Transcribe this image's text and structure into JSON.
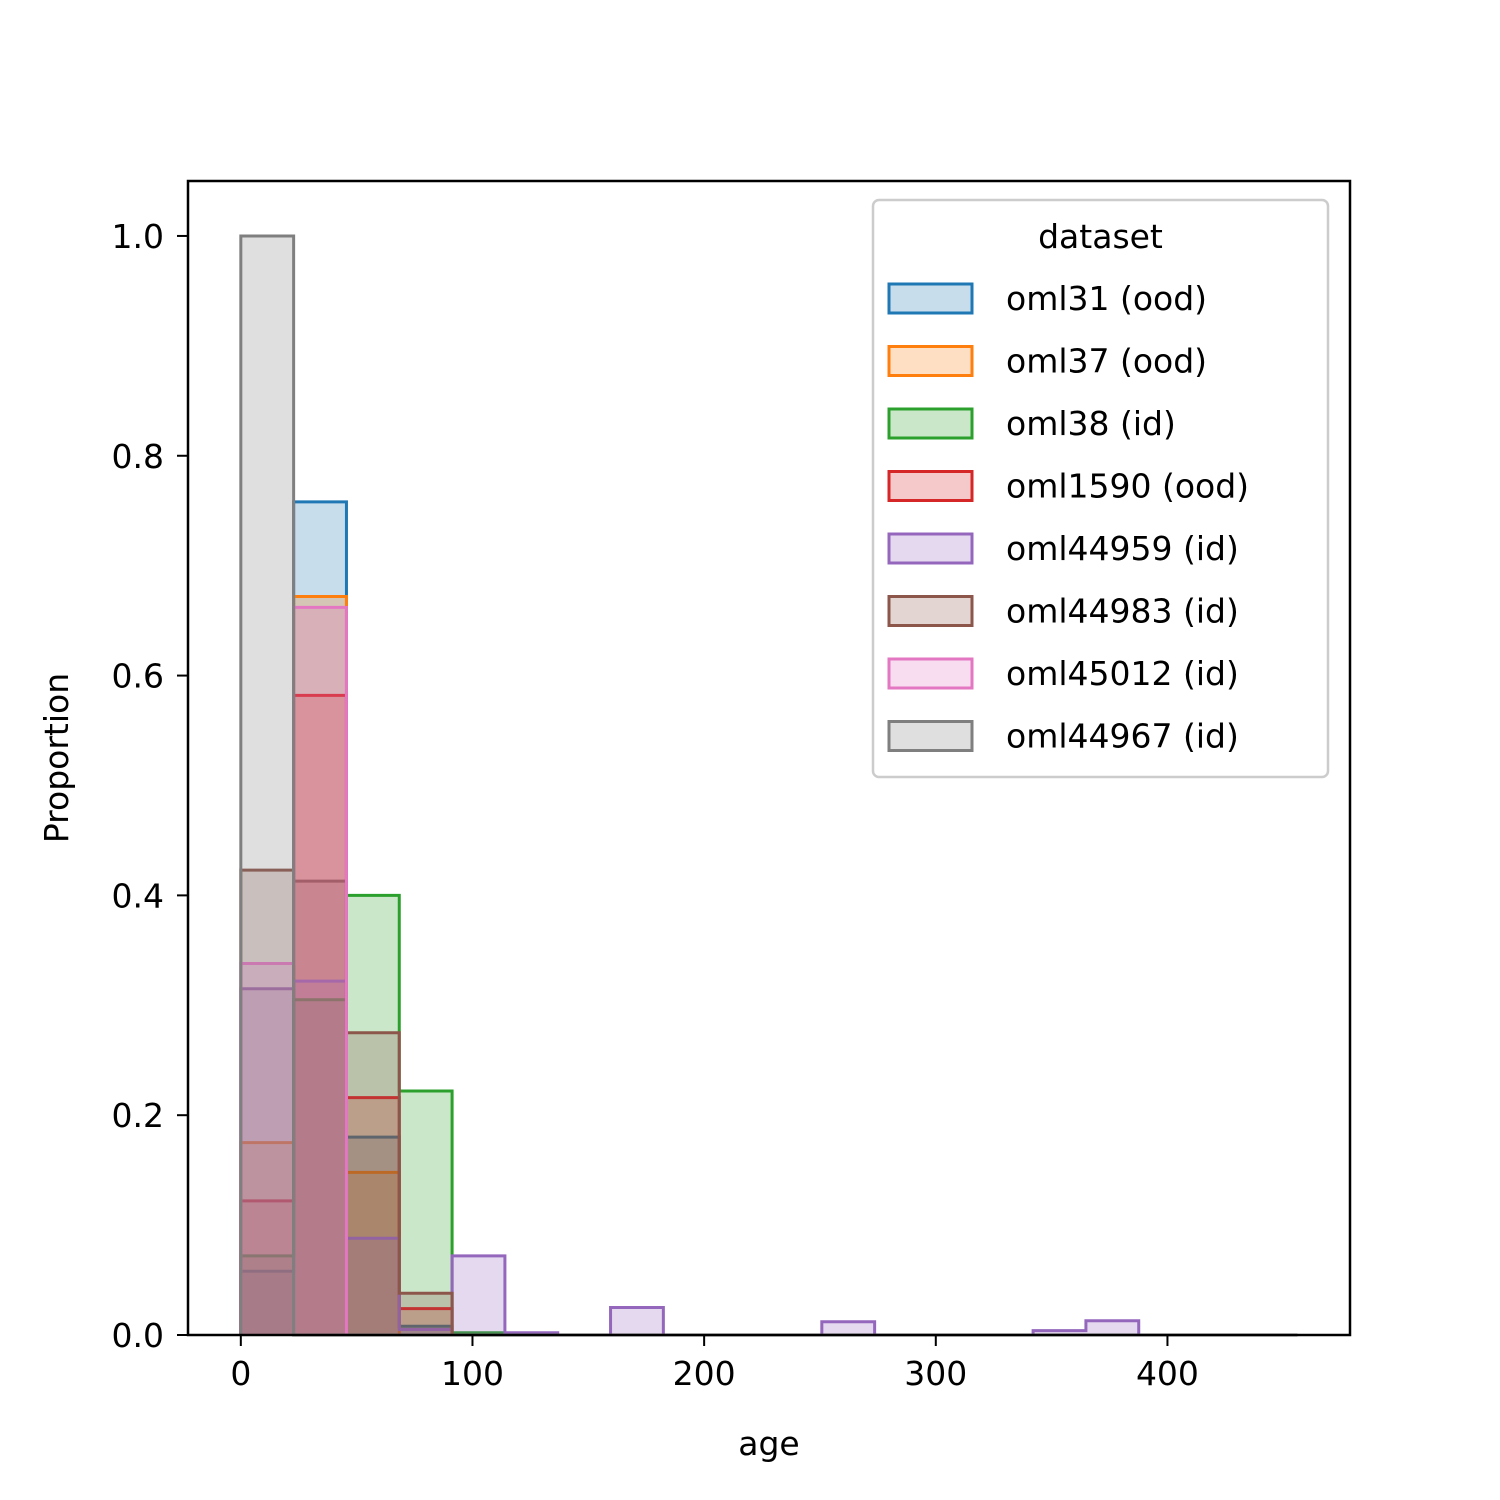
{
  "chart_data": {
    "type": "histogram",
    "xlabel": "age",
    "ylabel": "Proportion",
    "xlim": [
      -22.8,
      478.8
    ],
    "ylim": [
      0,
      1.05
    ],
    "xticks": [
      0,
      100,
      200,
      300,
      400
    ],
    "yticks": [
      "0.0",
      "0.2",
      "0.4",
      "0.6",
      "0.8",
      "1.0"
    ],
    "bin_edges": [
      0,
      22.8,
      45.6,
      68.4,
      91.2,
      114,
      136.8,
      159.6,
      182.4,
      205.2,
      228,
      250.8,
      273.6,
      296.4,
      319.2,
      342,
      364.8,
      387.6,
      410.4,
      433.2,
      456
    ],
    "legend": {
      "title": "dataset",
      "position": "upper right"
    },
    "series": [
      {
        "name": "oml31 (ood)",
        "color": "#1f77b4",
        "values": [
          0.058,
          0.758,
          0.18,
          0.008,
          0,
          0,
          0,
          0,
          0,
          0,
          0,
          0,
          0,
          0,
          0,
          0,
          0,
          0,
          0,
          0
        ]
      },
      {
        "name": "oml37 (ood)",
        "color": "#ff7f0e",
        "values": [
          0.175,
          0.672,
          0.148,
          0,
          0,
          0,
          0,
          0,
          0,
          0,
          0,
          0,
          0,
          0,
          0,
          0,
          0,
          0,
          0,
          0
        ]
      },
      {
        "name": "oml38 (id)",
        "color": "#2ca02c",
        "values": [
          0.072,
          0.305,
          0.4,
          0.222,
          0.002,
          0,
          0,
          0,
          0,
          0,
          0,
          0,
          0,
          0,
          0,
          0,
          0,
          0,
          0,
          0
        ]
      },
      {
        "name": "oml1590 (ood)",
        "color": "#d62728",
        "values": [
          0.122,
          0.582,
          0.216,
          0.024,
          0,
          0,
          0,
          0,
          0,
          0,
          0,
          0,
          0,
          0,
          0,
          0,
          0,
          0,
          0,
          0
        ]
      },
      {
        "name": "oml44959 (id)",
        "color": "#9467bd",
        "values": [
          0.315,
          0.322,
          0.088,
          0.005,
          0.072,
          0.002,
          0,
          0.025,
          0,
          0,
          0,
          0.012,
          0,
          0,
          0,
          0.004,
          0.013,
          0,
          0,
          0
        ]
      },
      {
        "name": "oml44983 (id)",
        "color": "#8c564b",
        "values": [
          0.423,
          0.413,
          0.275,
          0.038,
          0,
          0,
          0,
          0,
          0,
          0,
          0,
          0,
          0,
          0,
          0,
          0,
          0,
          0,
          0,
          0
        ]
      },
      {
        "name": "oml45012 (id)",
        "color": "#e377c2",
        "values": [
          0.338,
          0.662,
          0,
          0,
          0,
          0,
          0,
          0,
          0,
          0,
          0,
          0,
          0,
          0,
          0,
          0,
          0,
          0,
          0,
          0
        ]
      },
      {
        "name": "oml44967 (id)",
        "color": "#7f7f7f",
        "values": [
          1.0,
          0,
          0,
          0,
          0,
          0,
          0,
          0,
          0,
          0,
          0,
          0,
          0,
          0,
          0,
          0,
          0,
          0,
          0,
          0
        ]
      }
    ]
  }
}
